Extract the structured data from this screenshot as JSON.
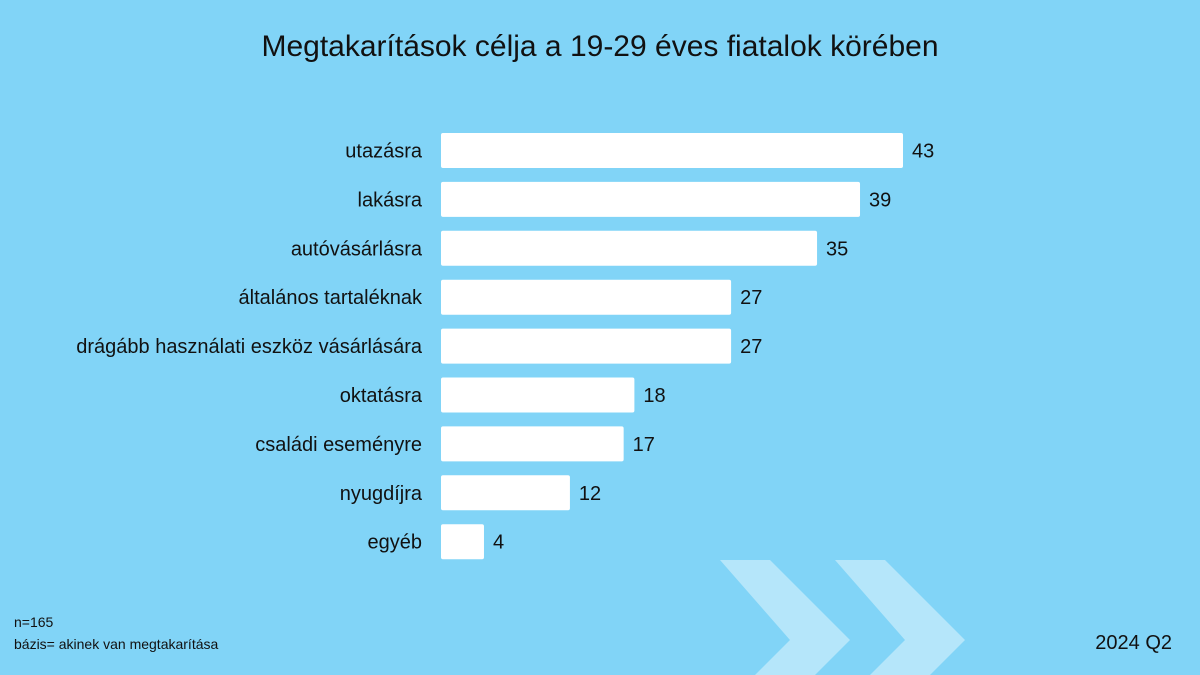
{
  "chart_data": {
    "type": "bar",
    "orientation": "horizontal",
    "title": "Megtakarítások célja a 19-29 éves fiatalok körében",
    "categories": [
      "utazásra",
      "lakásra",
      "autóvásárlásra",
      "általános tartaléknak",
      "drágább használati eszköz vásárlására",
      "oktatásra",
      "családi eseményre",
      "nyugdíjra",
      "egyéb"
    ],
    "values": [
      43,
      39,
      35,
      27,
      27,
      18,
      17,
      12,
      4
    ],
    "xlim": [
      0,
      43
    ],
    "grid": false,
    "legend": "none",
    "data_labels": true
  },
  "footer": {
    "sample": "n=165",
    "base": "bázis= akinek van megtakarítása",
    "period": "2024 Q2"
  },
  "colors": {
    "background": "#81d4f7",
    "bar": "#ffffff",
    "chevron": "#b5e6fa",
    "text": "#111111"
  }
}
